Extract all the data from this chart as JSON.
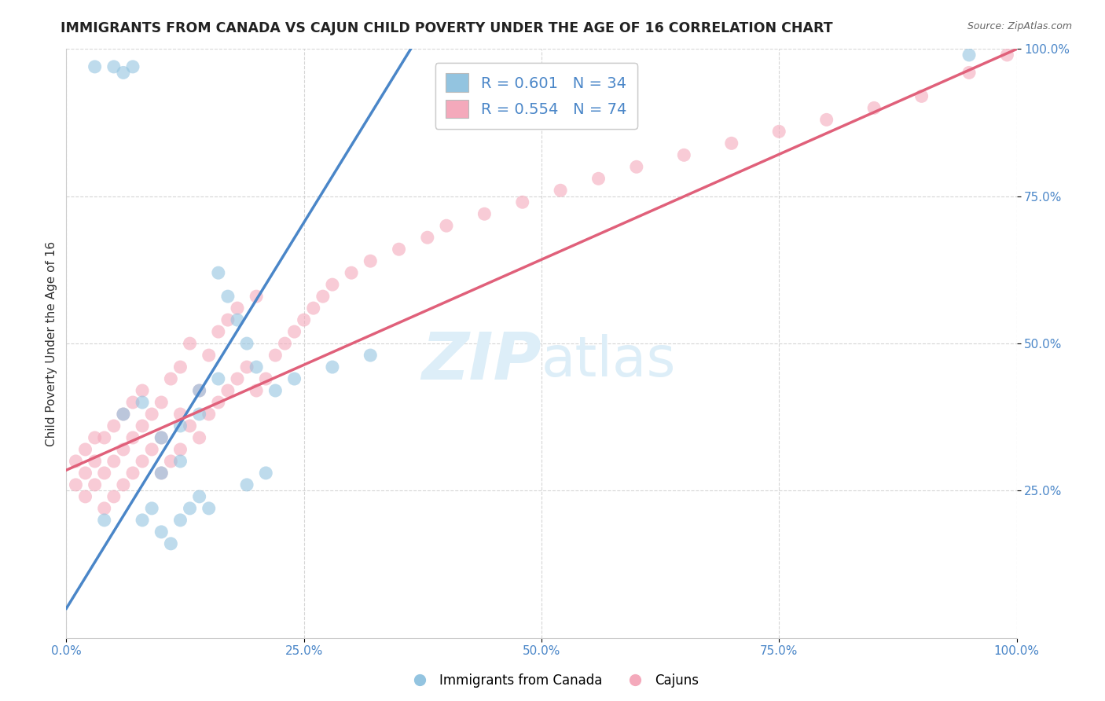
{
  "title": "IMMIGRANTS FROM CANADA VS CAJUN CHILD POVERTY UNDER THE AGE OF 16 CORRELATION CHART",
  "source": "Source: ZipAtlas.com",
  "ylabel": "Child Poverty Under the Age of 16",
  "xlim": [
    0.0,
    1.0
  ],
  "ylim": [
    0.0,
    1.0
  ],
  "xtick_vals": [
    0.0,
    0.25,
    0.5,
    0.75,
    1.0
  ],
  "xtick_labels": [
    "0.0%",
    "25.0%",
    "50.0%",
    "75.0%",
    "100.0%"
  ],
  "ytick_vals": [
    0.25,
    0.5,
    0.75,
    1.0
  ],
  "ytick_labels": [
    "25.0%",
    "50.0%",
    "75.0%",
    "100.0%"
  ],
  "legend_label1": "Immigrants from Canada",
  "legend_label2": "Cajuns",
  "r1": 0.601,
  "n1": 34,
  "r2": 0.554,
  "n2": 74,
  "color_blue": "#93c4e0",
  "color_pink": "#f4a9bb",
  "line_blue": "#4a86c8",
  "line_pink": "#e0607a",
  "background": "#ffffff",
  "title_fontsize": 12.5,
  "axis_label_fontsize": 11,
  "tick_fontsize": 11,
  "legend_fontsize": 14,
  "tick_color": "#4a86c8",
  "watermark_color": "#ddeef8",
  "watermark_fontsize": 60,
  "blue_line_x0": 0.0,
  "blue_line_y0": 0.05,
  "blue_line_x1": 0.37,
  "blue_line_y1": 1.02,
  "pink_line_x0": 0.0,
  "pink_line_y0": 0.285,
  "pink_line_x1": 1.0,
  "pink_line_y1": 1.0,
  "blue_pts_x": [
    0.05,
    0.06,
    0.07,
    0.03,
    0.04,
    0.08,
    0.09,
    0.1,
    0.11,
    0.12,
    0.13,
    0.14,
    0.15,
    0.16,
    0.17,
    0.18,
    0.19,
    0.1,
    0.12,
    0.14,
    0.06,
    0.08,
    0.1,
    0.12,
    0.14,
    0.16,
    0.2,
    0.22,
    0.24,
    0.28,
    0.32,
    0.95,
    0.19,
    0.21
  ],
  "blue_pts_y": [
    0.97,
    0.96,
    0.97,
    0.97,
    0.2,
    0.2,
    0.22,
    0.18,
    0.16,
    0.2,
    0.22,
    0.24,
    0.22,
    0.62,
    0.58,
    0.54,
    0.5,
    0.28,
    0.3,
    0.38,
    0.38,
    0.4,
    0.34,
    0.36,
    0.42,
    0.44,
    0.46,
    0.42,
    0.44,
    0.46,
    0.48,
    0.99,
    0.26,
    0.28
  ],
  "pink_pts_x": [
    0.01,
    0.01,
    0.02,
    0.02,
    0.02,
    0.03,
    0.03,
    0.03,
    0.04,
    0.04,
    0.04,
    0.05,
    0.05,
    0.05,
    0.06,
    0.06,
    0.06,
    0.07,
    0.07,
    0.07,
    0.08,
    0.08,
    0.08,
    0.09,
    0.09,
    0.1,
    0.1,
    0.1,
    0.11,
    0.11,
    0.12,
    0.12,
    0.12,
    0.13,
    0.13,
    0.14,
    0.14,
    0.15,
    0.15,
    0.16,
    0.16,
    0.17,
    0.17,
    0.18,
    0.18,
    0.19,
    0.2,
    0.2,
    0.21,
    0.22,
    0.23,
    0.24,
    0.25,
    0.26,
    0.27,
    0.28,
    0.3,
    0.32,
    0.35,
    0.4,
    0.44,
    0.48,
    0.52,
    0.56,
    0.6,
    0.65,
    0.7,
    0.75,
    0.8,
    0.85,
    0.9,
    0.95,
    0.99,
    0.38
  ],
  "pink_pts_y": [
    0.26,
    0.3,
    0.24,
    0.28,
    0.32,
    0.26,
    0.3,
    0.34,
    0.22,
    0.28,
    0.34,
    0.24,
    0.3,
    0.36,
    0.26,
    0.32,
    0.38,
    0.28,
    0.34,
    0.4,
    0.3,
    0.36,
    0.42,
    0.32,
    0.38,
    0.28,
    0.34,
    0.4,
    0.3,
    0.44,
    0.32,
    0.38,
    0.46,
    0.36,
    0.5,
    0.34,
    0.42,
    0.38,
    0.48,
    0.4,
    0.52,
    0.42,
    0.54,
    0.44,
    0.56,
    0.46,
    0.42,
    0.58,
    0.44,
    0.48,
    0.5,
    0.52,
    0.54,
    0.56,
    0.58,
    0.6,
    0.62,
    0.64,
    0.66,
    0.7,
    0.72,
    0.74,
    0.76,
    0.78,
    0.8,
    0.82,
    0.84,
    0.86,
    0.88,
    0.9,
    0.92,
    0.96,
    0.99,
    0.68
  ]
}
